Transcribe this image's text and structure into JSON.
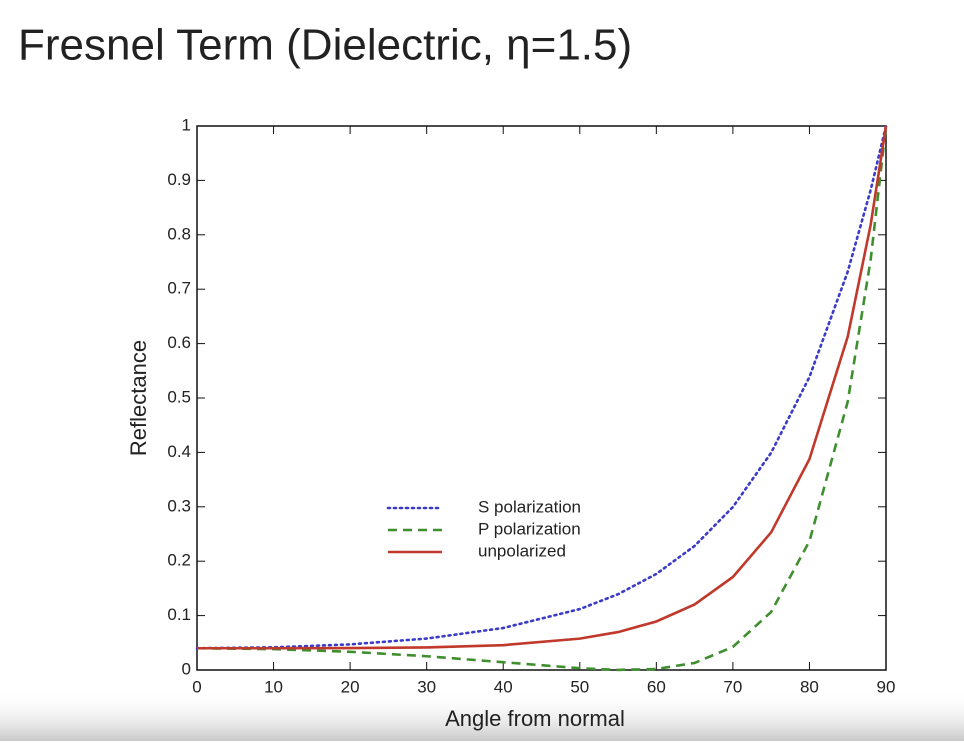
{
  "chart_data": {
    "type": "line",
    "title": "Fresnel Term (Dielectric, η=1.5)",
    "x_label": "Angle from normal",
    "y_label": "Reflectance",
    "x": [
      0,
      10,
      20,
      30,
      40,
      50,
      55,
      60,
      65,
      70,
      75,
      80,
      85,
      88,
      90
    ],
    "series": [
      {
        "name": "S polarization",
        "color": "#3b3bc8",
        "style": "dotted",
        "values": [
          0.04,
          0.0417,
          0.0471,
          0.0578,
          0.0772,
          0.112,
          0.1393,
          0.1766,
          0.2281,
          0.2996,
          0.3994,
          0.5386,
          0.7323,
          0.8826,
          1
        ]
      },
      {
        "name": "P polarization",
        "color": "#3f8f2f",
        "style": "dashed",
        "values": [
          0.04,
          0.0384,
          0.0335,
          0.0253,
          0.0143,
          0.0033,
          0.0002,
          0.0018,
          0.013,
          0.0425,
          0.1068,
          0.2368,
          0.4932,
          0.7548,
          1
        ]
      },
      {
        "name": "unpolarized",
        "color": "#c0392b",
        "style": "solid",
        "values": [
          0.04,
          0.04,
          0.0403,
          0.0415,
          0.0457,
          0.0577,
          0.0697,
          0.0892,
          0.1205,
          0.171,
          0.2531,
          0.3877,
          0.6128,
          0.8187,
          1
        ]
      }
    ],
    "xlim": [
      0,
      90
    ],
    "ylim": [
      0,
      1
    ],
    "xticks": [
      0,
      10,
      20,
      30,
      40,
      50,
      60,
      70,
      80,
      90
    ],
    "yticks": [
      0,
      0.1,
      0.2,
      0.3,
      0.4,
      0.5,
      0.6,
      0.7,
      0.8,
      0.9,
      1
    ],
    "grid": false
  }
}
